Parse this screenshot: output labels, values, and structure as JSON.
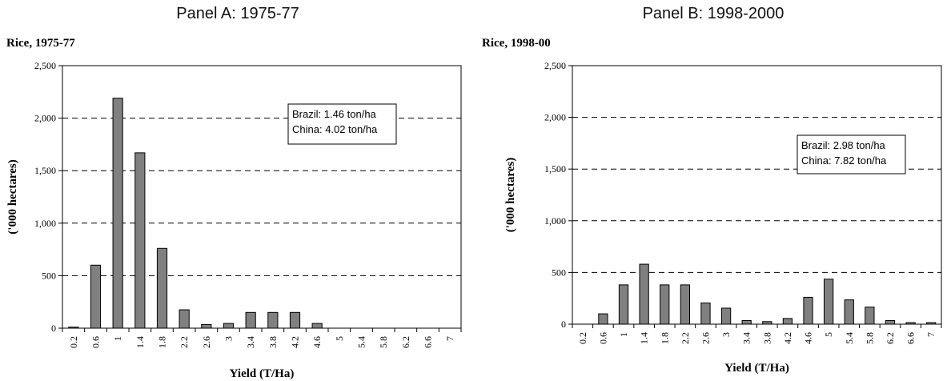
{
  "chart_data": [
    {
      "type": "bar",
      "panel_title": "Panel A: 1975-77",
      "title": "Rice, 1975-77",
      "xlabel": "Yield (T/Ha)",
      "ylabel": "('000 hectares)",
      "categories": [
        "0.2",
        "0.6",
        "1",
        "1.4",
        "1.8",
        "2.2",
        "2.6",
        "3",
        "3.4",
        "3.8",
        "4.2",
        "4.6",
        "5",
        "5.4",
        "5.8",
        "6.2",
        "6.6",
        "7"
      ],
      "values": [
        10,
        600,
        2190,
        1670,
        760,
        175,
        35,
        45,
        150,
        150,
        150,
        45,
        0,
        0,
        0,
        0,
        0,
        0
      ],
      "ylim": [
        0,
        2500
      ],
      "yticks": [
        0,
        500,
        1000,
        1500,
        2000,
        2500
      ],
      "ytick_labels": [
        "0",
        "500",
        "1,000",
        "1,500",
        "2,000",
        "2,500"
      ],
      "grid": "dashed horizontal at major ticks",
      "legend": [
        "Brazil: 1.46 ton/ha",
        "China: 4.02 ton/ha"
      ],
      "legend_placement": "upper-right",
      "bar_color": "#808080"
    },
    {
      "type": "bar",
      "panel_title": "Panel B: 1998-2000",
      "title": "Rice, 1998-00",
      "xlabel": "Yield (T/Ha)",
      "ylabel": "('000 hectares)",
      "categories": [
        "0.2",
        "0.6",
        "1",
        "1.4",
        "1.8",
        "2.2",
        "2.6",
        "3",
        "3.4",
        "3.8",
        "4.2",
        "4.6",
        "5",
        "5.4",
        "5.8",
        "6.2",
        "6.6",
        "7"
      ],
      "values": [
        0,
        100,
        380,
        580,
        380,
        380,
        205,
        155,
        35,
        25,
        55,
        260,
        435,
        235,
        165,
        35,
        15,
        15
      ],
      "ylim": [
        0,
        2500
      ],
      "yticks": [
        0,
        500,
        1000,
        1500,
        2000,
        2500
      ],
      "ytick_labels": [
        "0",
        "500",
        "1,000",
        "1,500",
        "2,000",
        "2,500"
      ],
      "grid": "dashed horizontal at major ticks",
      "legend": [
        "Brazil: 2.98 ton/ha",
        "China: 7.82 ton/ha"
      ],
      "legend_placement": "upper-right",
      "bar_color": "#808080"
    }
  ]
}
